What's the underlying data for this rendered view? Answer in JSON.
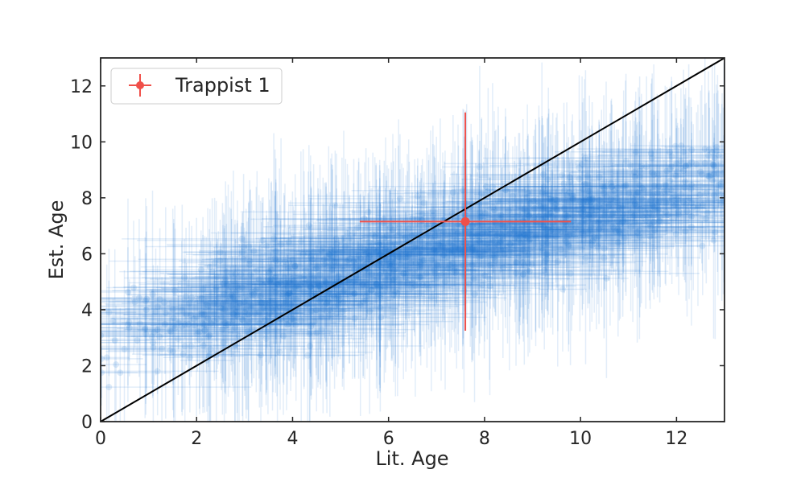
{
  "chart_data": {
    "type": "scatter",
    "title": "",
    "xlabel": "Lit. Age",
    "ylabel": "Est. Age",
    "xlim": [
      0,
      13
    ],
    "ylim": [
      0,
      13
    ],
    "xticks": [
      0,
      2,
      4,
      6,
      8,
      10,
      12
    ],
    "yticks": [
      0,
      2,
      4,
      6,
      8,
      10,
      12
    ],
    "grid": false,
    "legend": {
      "position": "top-left"
    },
    "colors": {
      "sample": "#1f77d4",
      "highlight": "#f0504a",
      "reference_line": "#000000"
    },
    "reference_line": {
      "x": [
        0,
        13
      ],
      "y": [
        0,
        13
      ]
    },
    "highlight": {
      "name": "Trappist 1",
      "x": 7.6,
      "y": 7.15,
      "xerr": [
        2.2,
        2.2
      ],
      "yerr": [
        3.9,
        3.9
      ]
    },
    "sample": {
      "count": 1200,
      "x_range": [
        0,
        13
      ],
      "y_range": [
        1.2,
        11.5
      ],
      "mean_relation": "y ≈ 2.9 + 0.45·x",
      "x_error_range": [
        0.3,
        3.0
      ],
      "y_error_range": [
        0.5,
        4.0
      ]
    }
  }
}
